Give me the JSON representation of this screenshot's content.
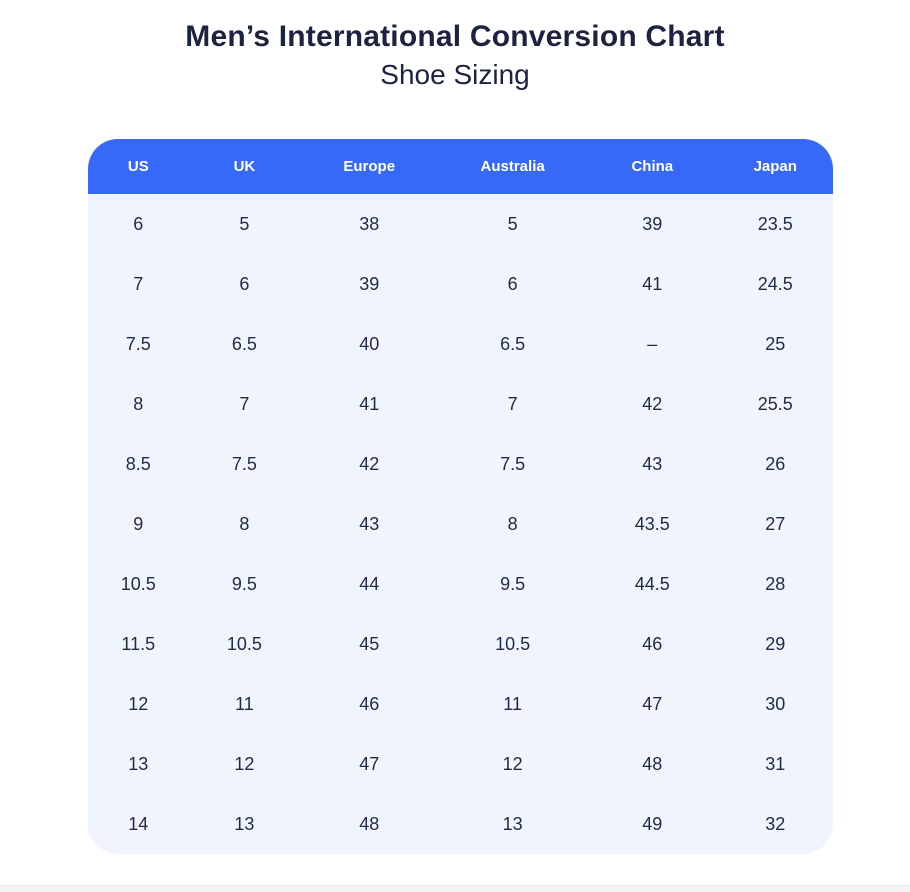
{
  "header": {
    "title": "Men’s International Conversion Chart",
    "subtitle": "Shoe Sizing"
  },
  "chart_data": {
    "type": "table",
    "title": "Men’s International Conversion Chart",
    "subtitle": "Shoe Sizing",
    "columns": [
      "US",
      "UK",
      "Europe",
      "Australia",
      "China",
      "Japan"
    ],
    "rows": [
      [
        "6",
        "5",
        "38",
        "5",
        "39",
        "23.5"
      ],
      [
        "7",
        "6",
        "39",
        "6",
        "41",
        "24.5"
      ],
      [
        "7.5",
        "6.5",
        "40",
        "6.5",
        "–",
        "25"
      ],
      [
        "8",
        "7",
        "41",
        "7",
        "42",
        "25.5"
      ],
      [
        "8.5",
        "7.5",
        "42",
        "7.5",
        "43",
        "26"
      ],
      [
        "9",
        "8",
        "43",
        "8",
        "43.5",
        "27"
      ],
      [
        "10.5",
        "9.5",
        "44",
        "9.5",
        "44.5",
        "28"
      ],
      [
        "11.5",
        "10.5",
        "45",
        "10.5",
        "46",
        "29"
      ],
      [
        "12",
        "11",
        "46",
        "11",
        "47",
        "30"
      ],
      [
        "13",
        "12",
        "47",
        "12",
        "48",
        "31"
      ],
      [
        "14",
        "13",
        "48",
        "13",
        "49",
        "32"
      ]
    ]
  },
  "colors": {
    "header_bg": "#3769f9",
    "header_text": "#ffffff",
    "body_bg": "#f0f4fc",
    "text_dark": "#1f2a44",
    "title_color": "#1b2340"
  }
}
